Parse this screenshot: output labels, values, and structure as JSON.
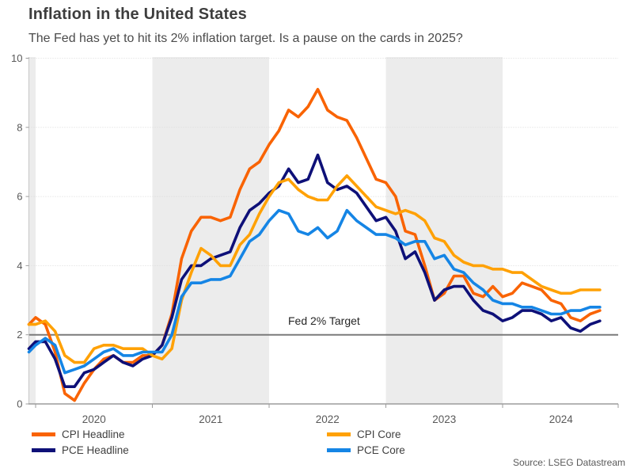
{
  "header": {
    "title": "Inflation in the United States",
    "subtitle": "The Fed has yet to hit its 2% inflation target. Is a pause on the cards in 2025?"
  },
  "source": "Source: LSEG Datastream",
  "chart_data": {
    "type": "line",
    "x_frequency": "monthly",
    "x_start": "2019-12",
    "x_end": "2024-11",
    "x_tick_labels": [
      "2020",
      "2021",
      "2022",
      "2023",
      "2024"
    ],
    "y_ticks": [
      0,
      2,
      4,
      6,
      8,
      10
    ],
    "ylim": [
      0,
      10
    ],
    "grid": "dotted horizontal at 4,6,8,10",
    "target_line": {
      "value": 2,
      "label": "Fed 2% Target"
    },
    "shaded_bands": [
      [
        0,
        1
      ],
      [
        13,
        25
      ],
      [
        37,
        49
      ]
    ],
    "legend_position": "bottom, two columns",
    "colors": {
      "band": "#ECECEC",
      "grid": "#D9D9D9",
      "target_line": "#7A7A7A",
      "axis": "#9C9C9C",
      "axis_light": "#C6C6C6",
      "tick_label": "#595959"
    },
    "series": [
      {
        "name": "CPI Headline",
        "color": "#F96302",
        "values": [
          2.3,
          2.5,
          2.3,
          1.5,
          0.3,
          0.1,
          0.6,
          1.0,
          1.3,
          1.4,
          1.2,
          1.2,
          1.4,
          1.4,
          1.7,
          2.6,
          4.2,
          5.0,
          5.4,
          5.4,
          5.3,
          5.4,
          6.2,
          6.8,
          7.0,
          7.5,
          7.9,
          8.5,
          8.3,
          8.6,
          9.1,
          8.5,
          8.3,
          8.2,
          7.7,
          7.1,
          6.5,
          6.4,
          6.0,
          5.0,
          4.9,
          4.0,
          3.0,
          3.2,
          3.7,
          3.7,
          3.2,
          3.1,
          3.4,
          3.1,
          3.2,
          3.5,
          3.4,
          3.3,
          3.0,
          2.9,
          2.5,
          2.4,
          2.6,
          2.7
        ]
      },
      {
        "name": "PCE Headline",
        "color": "#0E1078",
        "values": [
          1.6,
          1.8,
          1.8,
          1.3,
          0.5,
          0.5,
          0.9,
          1.0,
          1.2,
          1.4,
          1.2,
          1.1,
          1.3,
          1.4,
          1.7,
          2.5,
          3.6,
          4.0,
          4.0,
          4.2,
          4.3,
          4.4,
          5.1,
          5.6,
          5.8,
          6.1,
          6.3,
          6.8,
          6.4,
          6.5,
          7.2,
          6.4,
          6.2,
          6.3,
          6.1,
          5.7,
          5.3,
          5.4,
          5.0,
          4.2,
          4.4,
          3.8,
          3.0,
          3.3,
          3.4,
          3.4,
          3.0,
          2.7,
          2.6,
          2.4,
          2.5,
          2.7,
          2.7,
          2.6,
          2.4,
          2.5,
          2.2,
          2.1,
          2.3,
          2.4
        ]
      },
      {
        "name": "CPI Core",
        "color": "#FFA105",
        "values": [
          2.3,
          2.3,
          2.4,
          2.1,
          1.4,
          1.2,
          1.2,
          1.6,
          1.7,
          1.7,
          1.6,
          1.6,
          1.6,
          1.4,
          1.3,
          1.6,
          3.0,
          3.8,
          4.5,
          4.3,
          4.0,
          4.0,
          4.6,
          4.9,
          5.5,
          6.0,
          6.4,
          6.5,
          6.2,
          6.0,
          5.9,
          5.9,
          6.3,
          6.6,
          6.3,
          6.0,
          5.7,
          5.6,
          5.5,
          5.6,
          5.5,
          5.3,
          4.8,
          4.7,
          4.3,
          4.1,
          4.0,
          4.0,
          3.9,
          3.9,
          3.8,
          3.8,
          3.6,
          3.4,
          3.3,
          3.2,
          3.2,
          3.3,
          3.3,
          3.3
        ]
      },
      {
        "name": "PCE Core",
        "color": "#1585E5",
        "values": [
          1.5,
          1.7,
          1.9,
          1.7,
          0.9,
          1.0,
          1.1,
          1.3,
          1.5,
          1.6,
          1.4,
          1.4,
          1.5,
          1.5,
          1.5,
          2.0,
          3.1,
          3.5,
          3.5,
          3.6,
          3.6,
          3.7,
          4.2,
          4.7,
          4.9,
          5.3,
          5.6,
          5.5,
          5.0,
          4.9,
          5.1,
          4.8,
          5.0,
          5.6,
          5.3,
          5.1,
          4.9,
          4.9,
          4.8,
          4.6,
          4.7,
          4.7,
          4.2,
          4.3,
          3.9,
          3.8,
          3.5,
          3.3,
          3.0,
          2.9,
          2.9,
          2.8,
          2.8,
          2.7,
          2.6,
          2.6,
          2.7,
          2.7,
          2.8,
          2.8
        ]
      }
    ]
  }
}
